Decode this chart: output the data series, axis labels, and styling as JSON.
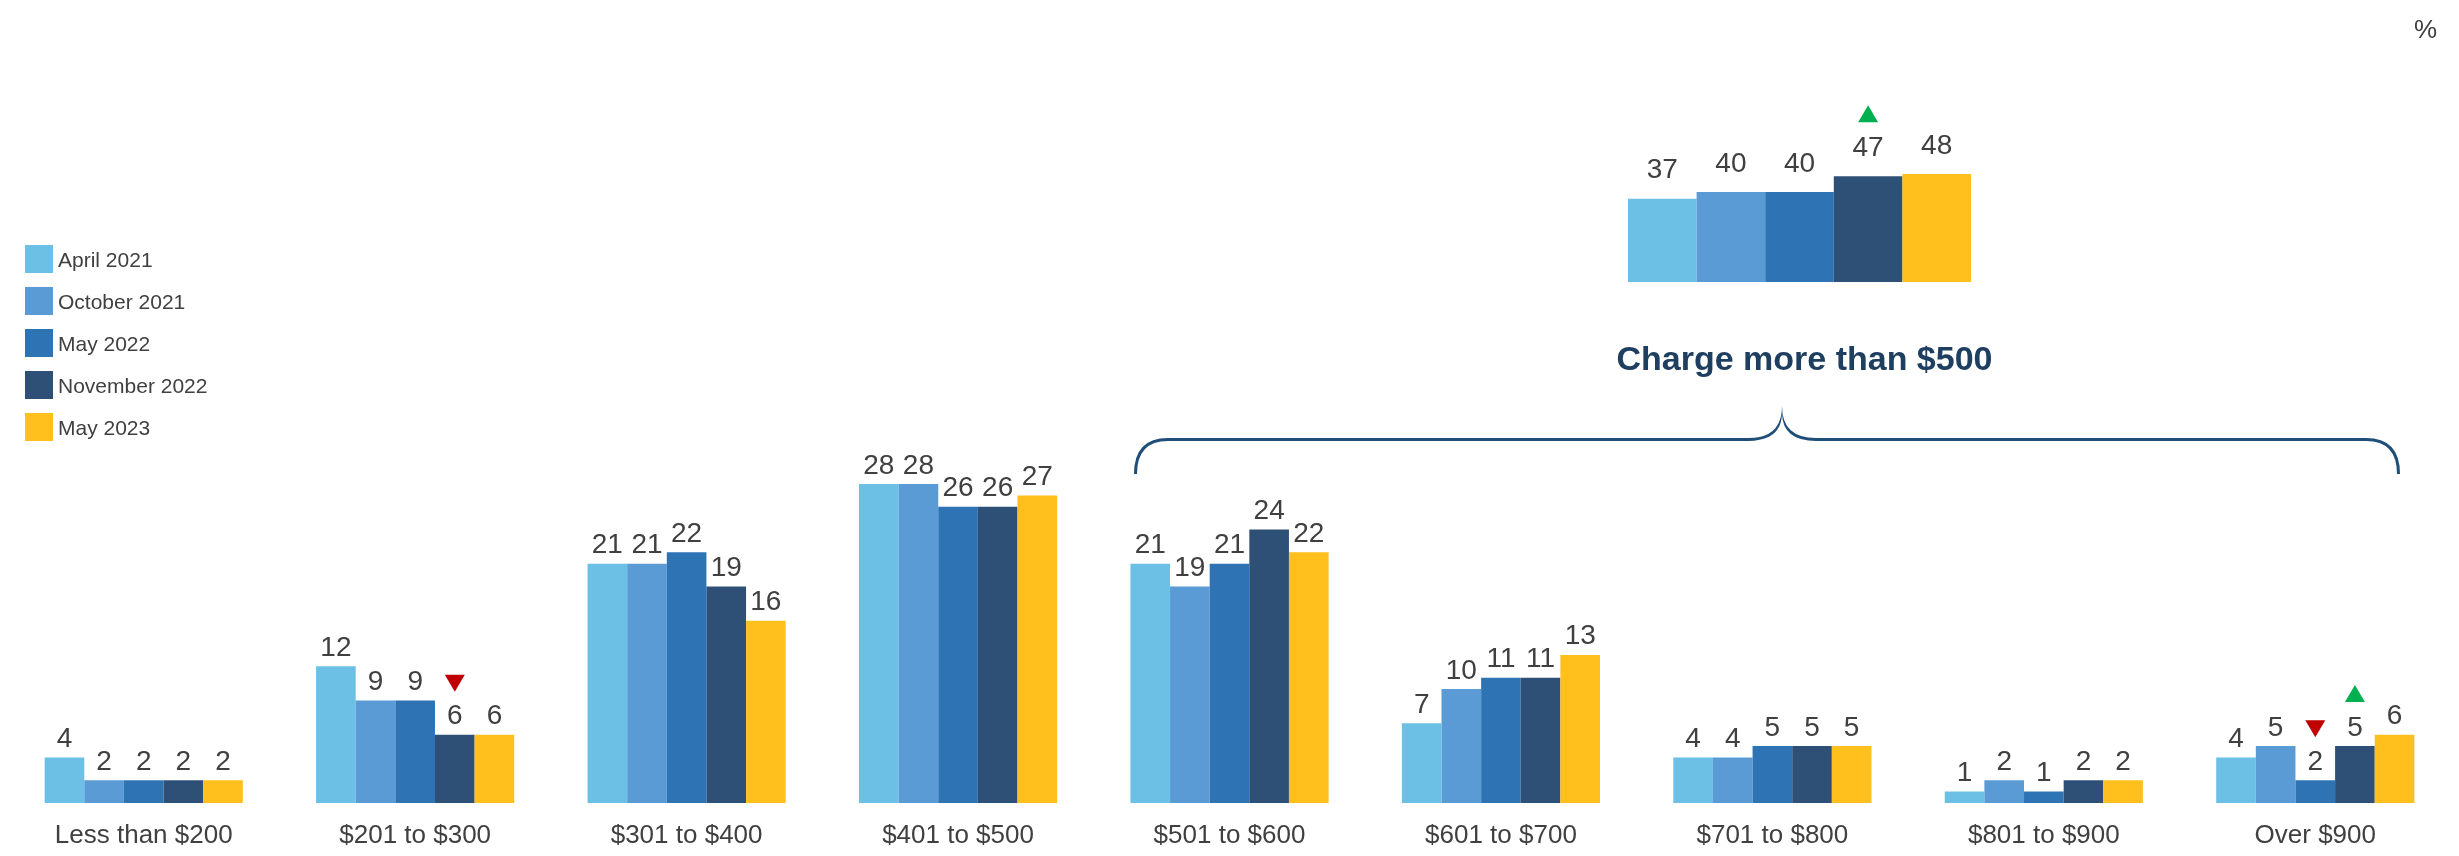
{
  "chart_data": [
    {
      "type": "bar",
      "categories": [
        "Less than $200",
        "$201 to $300",
        "$301 to $400",
        "$401 to $500",
        "$501 to $600",
        "$601 to $700",
        "$701 to $800",
        "$801 to $900",
        "Over $900"
      ],
      "series": [
        {
          "name": "April 2021",
          "color": "#6cc0e5",
          "values": [
            4,
            12,
            21,
            28,
            21,
            7,
            4,
            1,
            4
          ]
        },
        {
          "name": "October 2021",
          "color": "#5a9bd6",
          "values": [
            2,
            9,
            21,
            28,
            19,
            10,
            4,
            2,
            5
          ]
        },
        {
          "name": "May 2022",
          "color": "#2e74b5",
          "values": [
            2,
            9,
            22,
            26,
            21,
            11,
            5,
            1,
            2
          ]
        },
        {
          "name": "November 2022",
          "color": "#2e5077",
          "values": [
            2,
            6,
            19,
            26,
            24,
            11,
            5,
            2,
            5
          ]
        },
        {
          "name": "May 2023",
          "color": "#ffbf1d",
          "values": [
            2,
            6,
            16,
            27,
            22,
            13,
            5,
            2,
            6
          ]
        }
      ],
      "data_labels": true,
      "legend": "left"
    },
    {
      "type": "bar",
      "title": "Charge more than $500",
      "ylabel": "%",
      "categories": [
        null
      ],
      "series": [
        {
          "color": "#6cc0e5",
          "values": [
            37
          ]
        },
        {
          "color": "#5a9bd6",
          "values": [
            40
          ]
        },
        {
          "color": "#2e74b5",
          "values": [
            40
          ]
        },
        {
          "color": "#2e5077",
          "values": [
            47
          ]
        },
        {
          "color": "#ffbf1d",
          "values": [
            48
          ]
        }
      ],
      "data_labels": true
    }
  ]
}
